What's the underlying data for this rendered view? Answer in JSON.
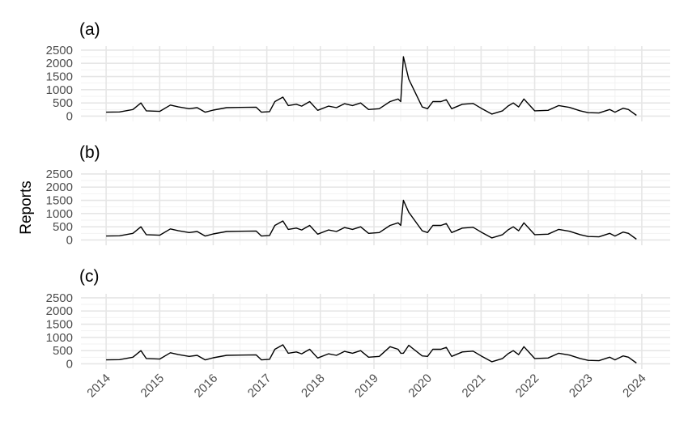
{
  "chart_data": [
    {
      "type": "line",
      "title": "(a)",
      "x": [
        2014.0,
        2014.25,
        2014.5,
        2014.65,
        2014.75,
        2015.0,
        2015.2,
        2015.35,
        2015.55,
        2015.7,
        2015.85,
        2016.0,
        2016.25,
        2016.5,
        2016.8,
        2016.9,
        2017.05,
        2017.15,
        2017.3,
        2017.4,
        2017.55,
        2017.65,
        2017.8,
        2017.95,
        2018.15,
        2018.3,
        2018.45,
        2018.6,
        2018.75,
        2018.9,
        2019.1,
        2019.3,
        2019.45,
        2019.5,
        2019.55,
        2019.65,
        2019.9,
        2020.0,
        2020.1,
        2020.25,
        2020.35,
        2020.45,
        2020.65,
        2020.85,
        2021.0,
        2021.2,
        2021.4,
        2021.5,
        2021.6,
        2021.7,
        2021.8,
        2022.0,
        2022.25,
        2022.45,
        2022.65,
        2022.85,
        2023.0,
        2023.2,
        2023.4,
        2023.5,
        2023.65,
        2023.75,
        2023.9
      ],
      "values": [
        150,
        160,
        250,
        500,
        200,
        180,
        420,
        350,
        280,
        320,
        150,
        230,
        320,
        330,
        340,
        150,
        170,
        550,
        720,
        400,
        450,
        380,
        550,
        220,
        380,
        320,
        470,
        400,
        500,
        250,
        280,
        550,
        650,
        550,
        2250,
        1400,
        350,
        280,
        550,
        550,
        620,
        280,
        450,
        480,
        300,
        80,
        200,
        380,
        500,
        350,
        650,
        200,
        220,
        400,
        330,
        200,
        130,
        120,
        250,
        150,
        300,
        250,
        30
      ],
      "color": "#000000",
      "xlim": [
        2013.53,
        2024.53
      ],
      "xticks": [
        2014,
        2015,
        2016,
        2017,
        2018,
        2019,
        2020,
        2021,
        2022,
        2023,
        2024
      ],
      "ylim": [
        -200,
        2650
      ],
      "yticks": [
        0,
        500,
        1000,
        1500,
        2000,
        2500
      ],
      "grid": true
    },
    {
      "type": "line",
      "title": "(b)",
      "ylabel": "Reports",
      "x": [
        2014.0,
        2014.25,
        2014.5,
        2014.65,
        2014.75,
        2015.0,
        2015.2,
        2015.35,
        2015.55,
        2015.7,
        2015.85,
        2016.0,
        2016.25,
        2016.5,
        2016.8,
        2016.9,
        2017.05,
        2017.15,
        2017.3,
        2017.4,
        2017.55,
        2017.65,
        2017.8,
        2017.95,
        2018.15,
        2018.3,
        2018.45,
        2018.6,
        2018.75,
        2018.9,
        2019.1,
        2019.3,
        2019.45,
        2019.5,
        2019.55,
        2019.65,
        2019.9,
        2020.0,
        2020.1,
        2020.25,
        2020.35,
        2020.45,
        2020.65,
        2020.85,
        2021.0,
        2021.2,
        2021.4,
        2021.5,
        2021.6,
        2021.7,
        2021.8,
        2022.0,
        2022.25,
        2022.45,
        2022.65,
        2022.85,
        2023.0,
        2023.2,
        2023.4,
        2023.5,
        2023.65,
        2023.75,
        2023.9
      ],
      "values": [
        150,
        160,
        250,
        500,
        200,
        180,
        420,
        350,
        280,
        320,
        150,
        230,
        320,
        330,
        340,
        150,
        170,
        550,
        720,
        400,
        450,
        380,
        550,
        220,
        380,
        320,
        470,
        400,
        500,
        250,
        280,
        550,
        650,
        550,
        1500,
        1050,
        350,
        280,
        550,
        550,
        620,
        280,
        450,
        480,
        300,
        80,
        200,
        380,
        500,
        350,
        650,
        200,
        220,
        400,
        330,
        200,
        130,
        120,
        250,
        150,
        300,
        250,
        30
      ],
      "color": "#000000",
      "xlim": [
        2013.53,
        2024.53
      ],
      "xticks": [
        2014,
        2015,
        2016,
        2017,
        2018,
        2019,
        2020,
        2021,
        2022,
        2023,
        2024
      ],
      "ylim": [
        -200,
        2650
      ],
      "yticks": [
        0,
        500,
        1000,
        1500,
        2000,
        2500
      ],
      "grid": true
    },
    {
      "type": "line",
      "title": "(c)",
      "x": [
        2014.0,
        2014.25,
        2014.5,
        2014.65,
        2014.75,
        2015.0,
        2015.2,
        2015.35,
        2015.55,
        2015.7,
        2015.85,
        2016.0,
        2016.25,
        2016.5,
        2016.8,
        2016.9,
        2017.05,
        2017.15,
        2017.3,
        2017.4,
        2017.55,
        2017.65,
        2017.8,
        2017.95,
        2018.15,
        2018.3,
        2018.45,
        2018.6,
        2018.75,
        2018.9,
        2019.1,
        2019.3,
        2019.45,
        2019.5,
        2019.55,
        2019.65,
        2019.9,
        2020.0,
        2020.1,
        2020.25,
        2020.35,
        2020.45,
        2020.65,
        2020.85,
        2021.0,
        2021.2,
        2021.4,
        2021.5,
        2021.6,
        2021.7,
        2021.8,
        2022.0,
        2022.25,
        2022.45,
        2022.65,
        2022.85,
        2023.0,
        2023.2,
        2023.4,
        2023.5,
        2023.65,
        2023.75,
        2023.9
      ],
      "values": [
        150,
        160,
        250,
        500,
        200,
        180,
        420,
        350,
        280,
        320,
        150,
        230,
        320,
        330,
        340,
        150,
        170,
        550,
        720,
        400,
        450,
        380,
        550,
        220,
        380,
        320,
        470,
        400,
        500,
        250,
        280,
        650,
        550,
        400,
        400,
        700,
        300,
        280,
        550,
        550,
        620,
        280,
        450,
        480,
        300,
        80,
        200,
        380,
        500,
        350,
        650,
        200,
        220,
        400,
        330,
        200,
        130,
        120,
        250,
        150,
        300,
        250,
        30
      ],
      "color": "#000000",
      "xlim": [
        2013.53,
        2024.53
      ],
      "xticks": [
        2014,
        2015,
        2016,
        2017,
        2018,
        2019,
        2020,
        2021,
        2022,
        2023,
        2024
      ],
      "ylim": [
        -200,
        2650
      ],
      "yticks": [
        0,
        500,
        1000,
        1500,
        2000,
        2500
      ],
      "grid": true
    }
  ]
}
